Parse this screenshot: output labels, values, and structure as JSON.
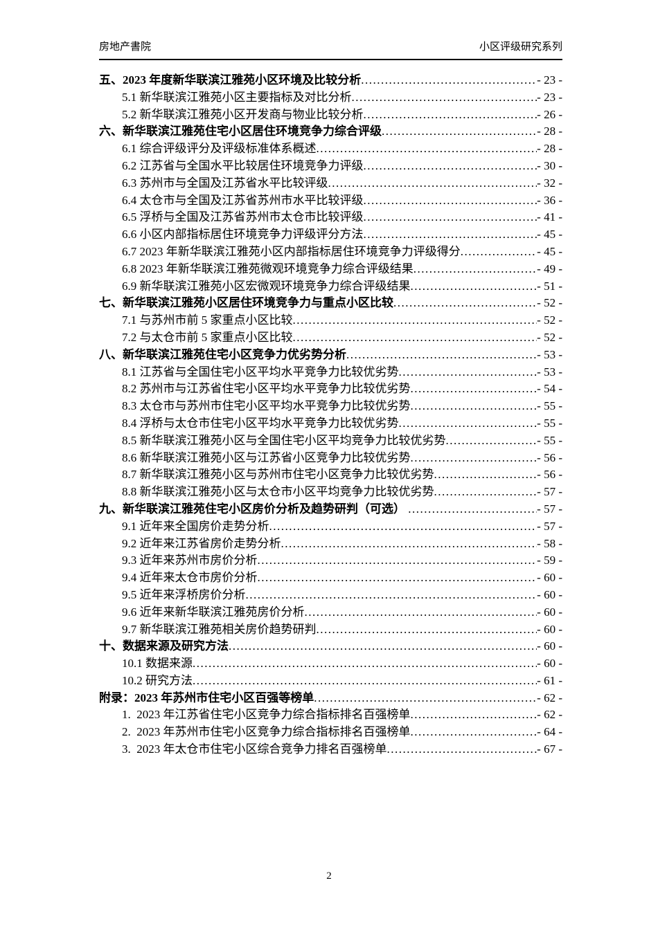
{
  "header": {
    "left_title": "房地产書院",
    "right_title": "小区评级研究系列"
  },
  "toc": {
    "entries": [
      {
        "level": 1,
        "label": "五、2023 年度新华联滨江雅苑小区环境及比较分析",
        "page": "- 23 -"
      },
      {
        "level": 2,
        "label": "5.1 新华联滨江雅苑小区主要指标及对比分析",
        "page": "- 23 -"
      },
      {
        "level": 2,
        "label": "5.2 新华联滨江雅苑小区开发商与物业比较分析",
        "page": "- 26 -"
      },
      {
        "level": 1,
        "label": "六、新华联滨江雅苑住宅小区居住环境竞争力综合评级",
        "page": "- 28 -"
      },
      {
        "level": 2,
        "label": "6.1 综合评级评分及评级标准体系概述",
        "page": "- 28 -"
      },
      {
        "level": 2,
        "label": "6.2 江苏省与全国水平比较居住环境竞争力评级",
        "page": "- 30 -"
      },
      {
        "level": 2,
        "label": "6.3 苏州市与全国及江苏省水平比较评级",
        "page": "- 32 -"
      },
      {
        "level": 2,
        "label": "6.4 太仓市与全国及江苏省苏州市水平比较评级",
        "page": "- 36 -"
      },
      {
        "level": 2,
        "label": "6.5 浮桥与全国及江苏省苏州市太仓市比较评级",
        "page": "- 41 -"
      },
      {
        "level": 2,
        "label": "6.6 小区内部指标居住环境竞争力评级评分方法",
        "page": "- 45 -"
      },
      {
        "level": 2,
        "label": "6.7 2023 年新华联滨江雅苑小区内部指标居住环境竞争力评级得分",
        "page": "- 45 -"
      },
      {
        "level": 2,
        "label": "6.8 2023 年新华联滨江雅苑微观环境竞争力综合评级结果",
        "page": "- 49 -"
      },
      {
        "level": 2,
        "label": "6.9 新华联滨江雅苑小区宏微观环境竞争力综合评级结果",
        "page": "- 51 -"
      },
      {
        "level": 1,
        "label": "七、新华联滨江雅苑小区居住环境竞争力与重点小区比较",
        "page": "- 52 -"
      },
      {
        "level": 2,
        "label": "7.1 与苏州市前 5 家重点小区比较",
        "page": "- 52 -"
      },
      {
        "level": 2,
        "label": "7.2 与太仓市前 5 家重点小区比较",
        "page": "- 52 -"
      },
      {
        "level": 1,
        "label": "八、新华联滨江雅苑住宅小区竞争力优劣势分析",
        "page": "- 53 -"
      },
      {
        "level": 2,
        "label": "8.1 江苏省与全国住宅小区平均水平竞争力比较优劣势",
        "page": "- 53 -"
      },
      {
        "level": 2,
        "label": "8.2 苏州市与江苏省住宅小区平均水平竞争力比较优劣势",
        "page": "- 54 -"
      },
      {
        "level": 2,
        "label": "8.3 太仓市与苏州市住宅小区平均水平竞争力比较优劣势",
        "page": "- 55 -"
      },
      {
        "level": 2,
        "label": "8.4 浮桥与太仓市住宅小区平均水平竞争力比较优劣势",
        "page": "- 55 -"
      },
      {
        "level": 2,
        "label": "8.5 新华联滨江雅苑小区与全国住宅小区平均竞争力比较优劣势",
        "page": "- 55 -"
      },
      {
        "level": 2,
        "label": "8.6 新华联滨江雅苑小区与江苏省小区竞争力比较优劣势",
        "page": "- 56 -"
      },
      {
        "level": 2,
        "label": "8.7 新华联滨江雅苑小区与苏州市住宅小区竞争力比较优劣势",
        "page": "- 56 -"
      },
      {
        "level": 2,
        "label": "8.8 新华联滨江雅苑小区与太仓市小区平均竞争力比较优劣势",
        "page": "- 57 -"
      },
      {
        "level": 1,
        "label": "九、新华联滨江雅苑住宅小区房价分析及趋势研判（可选） ",
        "page": "- 57 -"
      },
      {
        "level": 2,
        "label": "9.1 近年来全国房价走势分析",
        "page": "- 57 -"
      },
      {
        "level": 2,
        "label": "9.2 近年来江苏省房价走势分析",
        "page": "- 58 -"
      },
      {
        "level": 2,
        "label": "9.3 近年来苏州市房价分析",
        "page": "- 59 -"
      },
      {
        "level": 2,
        "label": "9.4 近年来太仓市房价分析",
        "page": "- 60 -"
      },
      {
        "level": 2,
        "label": "9.5 近年来浮桥房价分析",
        "page": "- 60 -"
      },
      {
        "level": 2,
        "label": "9.6 近年来新华联滨江雅苑房价分析",
        "page": "- 60 -"
      },
      {
        "level": 2,
        "label": "9.7 新华联滨江雅苑相关房价趋势研判",
        "page": "- 60 -"
      },
      {
        "level": 1,
        "label": "十、数据来源及研究方法",
        "page": "- 60 -"
      },
      {
        "level": 2,
        "label": "10.1 数据来源",
        "page": "- 60 -"
      },
      {
        "level": 2,
        "label": "10.2 研究方法",
        "page": "- 61 -"
      },
      {
        "level": 1,
        "label": "附录：2023 年苏州市住宅小区百强等榜单",
        "page": "- 62 -"
      },
      {
        "level": 2,
        "label": "1.  2023 年江苏省住宅小区竞争力综合指标排名百强榜单",
        "page": "- 62 -"
      },
      {
        "level": 2,
        "label": "2.  2023 年苏州市住宅小区竞争力综合指标排名百强榜单",
        "page": "- 64 -"
      },
      {
        "level": 2,
        "label": "3.  2023 年太仓市住宅小区综合竞争力排名百强榜单",
        "page": "- 67 -"
      }
    ]
  },
  "footer": {
    "page_number": "2"
  }
}
